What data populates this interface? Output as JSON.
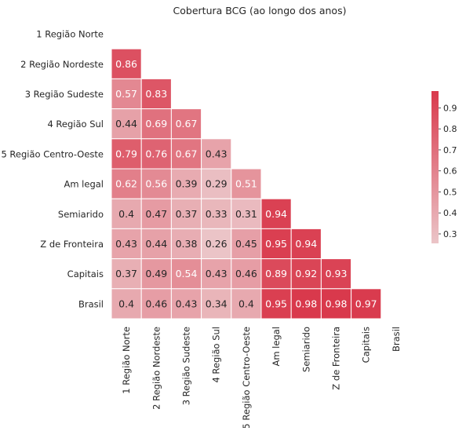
{
  "chart_data": {
    "type": "heatmap",
    "title": "Cobertura BCG (ao longo dos anos)",
    "xlabel": "",
    "ylabel": "",
    "labels": [
      "1 Região Norte",
      "2 Região Nordeste",
      "3 Região Sudeste",
      "4 Região Sul",
      "5 Região Centro-Oeste",
      "Am legal",
      "Semiarido",
      "Z de Fronteira",
      "Capitais",
      "Brasil"
    ],
    "mask": "upper-triangle-including-diagonal",
    "values": [
      [],
      [
        0.86
      ],
      [
        0.57,
        0.83
      ],
      [
        0.44,
        0.69,
        0.67
      ],
      [
        0.79,
        0.76,
        0.67,
        0.43
      ],
      [
        0.62,
        0.56,
        0.39,
        0.29,
        0.51
      ],
      [
        0.4,
        0.47,
        0.37,
        0.33,
        0.31,
        0.94
      ],
      [
        0.43,
        0.44,
        0.38,
        0.26,
        0.45,
        0.95,
        0.94
      ],
      [
        0.37,
        0.49,
        0.54,
        0.43,
        0.46,
        0.89,
        0.92,
        0.93
      ],
      [
        0.4,
        0.46,
        0.43,
        0.34,
        0.4,
        0.95,
        0.98,
        0.98,
        0.97
      ]
    ],
    "value_labels": [
      [],
      [
        "0.86"
      ],
      [
        "0.57",
        "0.83"
      ],
      [
        "0.44",
        "0.69",
        "0.67"
      ],
      [
        "0.79",
        "0.76",
        "0.67",
        "0.43"
      ],
      [
        "0.62",
        "0.56",
        "0.39",
        "0.29",
        "0.51"
      ],
      [
        "0.4",
        "0.47",
        "0.37",
        "0.33",
        "0.31",
        "0.94"
      ],
      [
        "0.43",
        "0.44",
        "0.38",
        "0.26",
        "0.45",
        "0.95",
        "0.94"
      ],
      [
        "0.37",
        "0.49",
        "0.54",
        "0.43",
        "0.46",
        "0.89",
        "0.92",
        "0.93"
      ],
      [
        "0.4",
        "0.46",
        "0.43",
        "0.34",
        "0.4",
        "0.95",
        "0.98",
        "0.98",
        "0.97"
      ]
    ],
    "colorbar": {
      "min": 0.255,
      "max": 0.98,
      "ticks": [
        0.3,
        0.4,
        0.5,
        0.6,
        0.7,
        0.8,
        0.9
      ],
      "tick_labels": [
        "0.3",
        "0.4",
        "0.5",
        "0.6",
        "0.7",
        "0.8",
        "0.9"
      ],
      "color_low": "#ebc5c8",
      "color_high": "#d9394c"
    },
    "text_color_light": "#ffffff",
    "text_color_dark": "#262626",
    "grid": false,
    "legend": "colorbar-right"
  }
}
